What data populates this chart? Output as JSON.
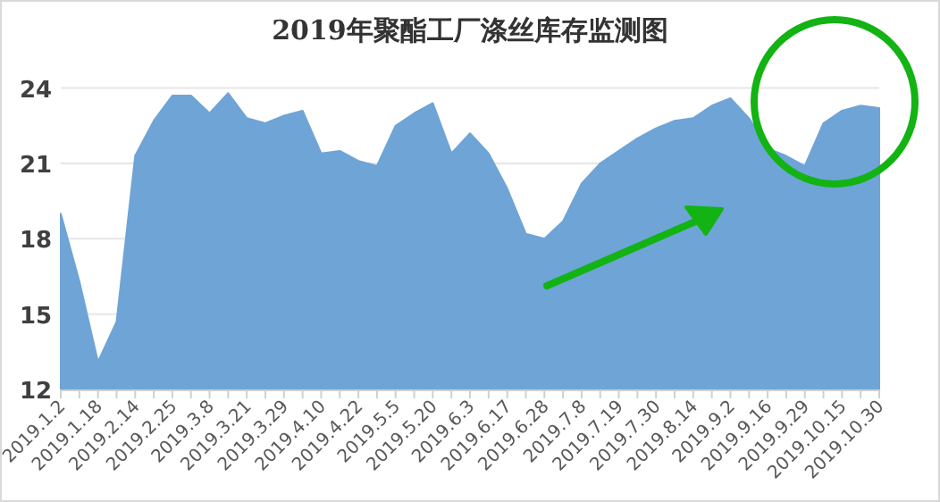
{
  "chart_data": {
    "type": "area",
    "title": "2019年聚酯工厂涤丝库存监测图",
    "color": "#6fa4d7",
    "ylim": [
      12,
      24
    ],
    "yticks": [
      12,
      15,
      18,
      21,
      24
    ],
    "grid": "y",
    "categories": [
      "2019.1.2",
      null,
      "2019.1.18",
      null,
      "2019.2.14",
      null,
      "2019.2.25",
      null,
      "2019.3.8",
      null,
      "2019.3.21",
      null,
      "2019.3.29",
      null,
      "2019.4.10",
      null,
      "2019.4.22",
      null,
      "2019.5.5",
      null,
      "2019.5.20",
      null,
      "2019.6.3",
      null,
      "2019.6.17",
      null,
      "2019.6.28",
      null,
      "2019.7.8",
      null,
      "2019.7.19",
      null,
      "2019.7.30",
      null,
      "2019.8.14",
      null,
      "2019.9.2",
      null,
      "2019.9.16",
      null,
      "2019.9.29",
      null,
      "2019.10.15",
      null,
      "2019.10.30"
    ],
    "values": [
      19.0,
      16.3,
      13.1,
      14.7,
      21.3,
      22.7,
      23.7,
      23.7,
      23.0,
      23.8,
      22.8,
      22.6,
      22.9,
      23.1,
      21.4,
      21.5,
      21.1,
      20.9,
      22.5,
      23.0,
      23.4,
      21.4,
      22.2,
      21.4,
      20.0,
      18.2,
      18.0,
      18.7,
      20.2,
      21.0,
      21.5,
      22.0,
      22.4,
      22.7,
      22.8,
      23.3,
      23.6,
      22.8,
      21.6,
      21.3,
      20.9,
      22.6,
      23.1,
      23.3,
      23.2
    ]
  }
}
